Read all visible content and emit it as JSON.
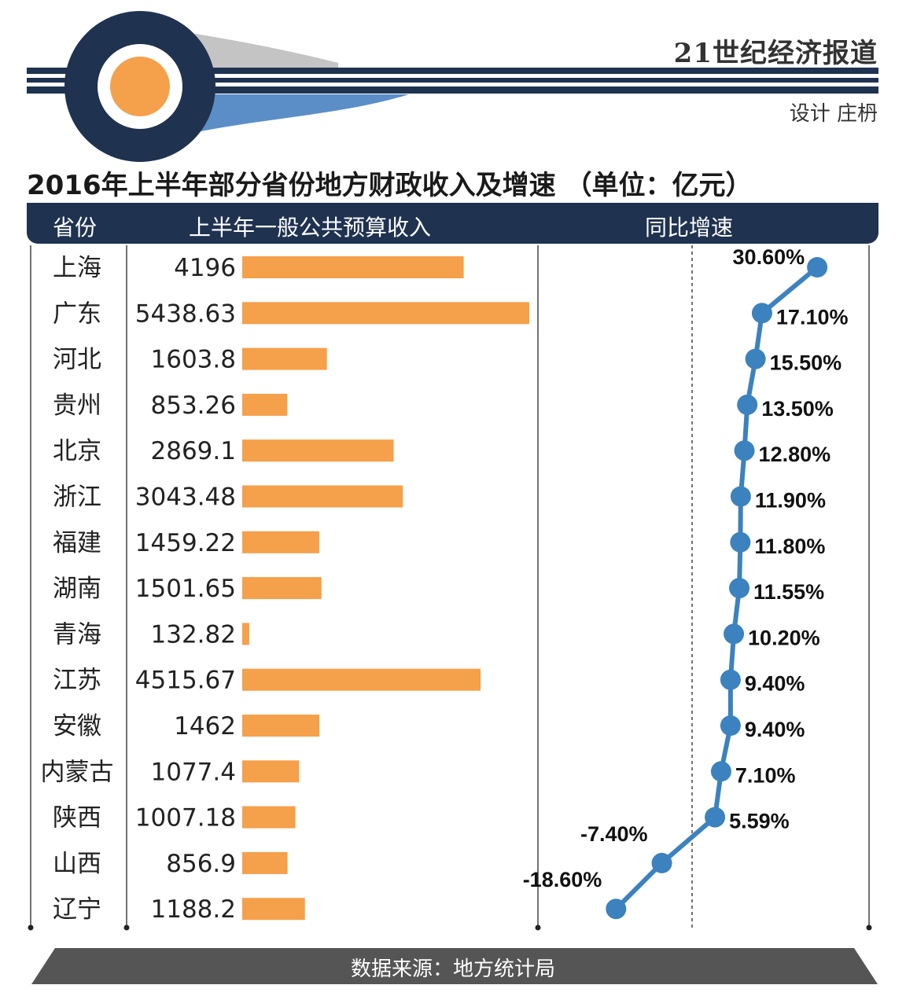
{
  "header": {
    "publisher": "21世纪经济报道",
    "designer": "设计 庄枬",
    "title": "2016年上半年部分省份地方财政收入及增速 （单位：亿元）"
  },
  "columns": {
    "province": "省份",
    "revenue": "上半年一般公共预算收入",
    "growth": "同比增速"
  },
  "footer": {
    "source": "数据来源：地方统计局"
  },
  "colors": {
    "navy": "#1f3250",
    "orange": "#f5a04a",
    "blue": "#3b82bf",
    "band": "#555555"
  },
  "chart_data": {
    "type": "bar",
    "title": "2016年上半年部分省份地方财政收入及增速 （单位：亿元）",
    "categories": [
      "上海",
      "广东",
      "河北",
      "贵州",
      "北京",
      "浙江",
      "福建",
      "湖南",
      "青海",
      "江苏",
      "安徽",
      "内蒙古",
      "陕西",
      "山西",
      "辽宁"
    ],
    "series": [
      {
        "name": "上半年一般公共预算收入",
        "unit": "亿元",
        "values": [
          4196,
          5438.63,
          1603.8,
          853.26,
          2869.1,
          3043.48,
          1459.22,
          1501.65,
          132.82,
          4515.67,
          1462,
          1077.4,
          1007.18,
          856.9,
          1188.2
        ],
        "labels": [
          "4196",
          "5438.63",
          "1603.8",
          "853.26",
          "2869.1",
          "3043.48",
          "1459.22",
          "1501.65",
          "132.82",
          "4515.67",
          "1462",
          "1077.4",
          "1007.18",
          "856.9",
          "1188.2"
        ]
      },
      {
        "name": "同比增速",
        "unit": "%",
        "type": "line",
        "values": [
          30.6,
          17.1,
          15.5,
          13.5,
          12.8,
          11.9,
          11.8,
          11.55,
          10.2,
          9.4,
          9.4,
          7.1,
          5.59,
          -7.4,
          -18.6
        ],
        "labels": [
          "30.60%",
          "17.10%",
          "15.50%",
          "13.50%",
          "12.80%",
          "11.90%",
          "11.80%",
          "11.55%",
          "10.20%",
          "9.40%",
          "9.40%",
          "7.10%",
          "5.59%",
          "-7.40%",
          "-18.60%"
        ]
      }
    ],
    "xlim_revenue": [
      0,
      5438.63
    ],
    "xlim_growth": [
      -18.6,
      30.6
    ]
  }
}
